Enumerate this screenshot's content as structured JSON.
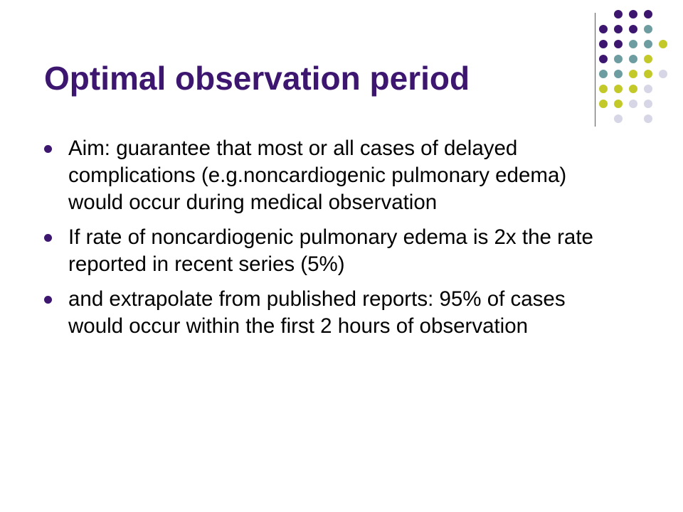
{
  "slide": {
    "title": "Optimal observation period",
    "bullets": [
      {
        "text": "Aim: guarantee that most or all cases of delayed complications (e.g.noncardiogenic pulmonary edema) would occur during medical observation"
      },
      {
        "text": "If rate of noncardiogenic pulmonary edema is 2x the rate reported in recent series (5%)"
      },
      {
        "text": "and extrapolate from published reports: 95% of cases would occur within the first 2 hours of observation"
      }
    ]
  },
  "theme": {
    "title_color": "#3d1670",
    "bullet_color": "#3d1670",
    "dot_colors": {
      "purple": "#3d1670",
      "teal": "#6d9da0",
      "olive": "#c3c929",
      "lavender": "#d6d6e6"
    },
    "dot_grid": [
      [
        "",
        "purple",
        "purple",
        "purple",
        ""
      ],
      [
        "purple",
        "purple",
        "purple",
        "teal",
        ""
      ],
      [
        "purple",
        "purple",
        "teal",
        "teal",
        "olive"
      ],
      [
        "purple",
        "teal",
        "teal",
        "olive",
        ""
      ],
      [
        "teal",
        "teal",
        "olive",
        "olive",
        "lavender"
      ],
      [
        "olive",
        "olive",
        "olive",
        "lavender",
        ""
      ],
      [
        "olive",
        "olive",
        "lavender",
        "lavender",
        ""
      ],
      [
        "",
        "lavender",
        "",
        "lavender",
        ""
      ]
    ]
  }
}
